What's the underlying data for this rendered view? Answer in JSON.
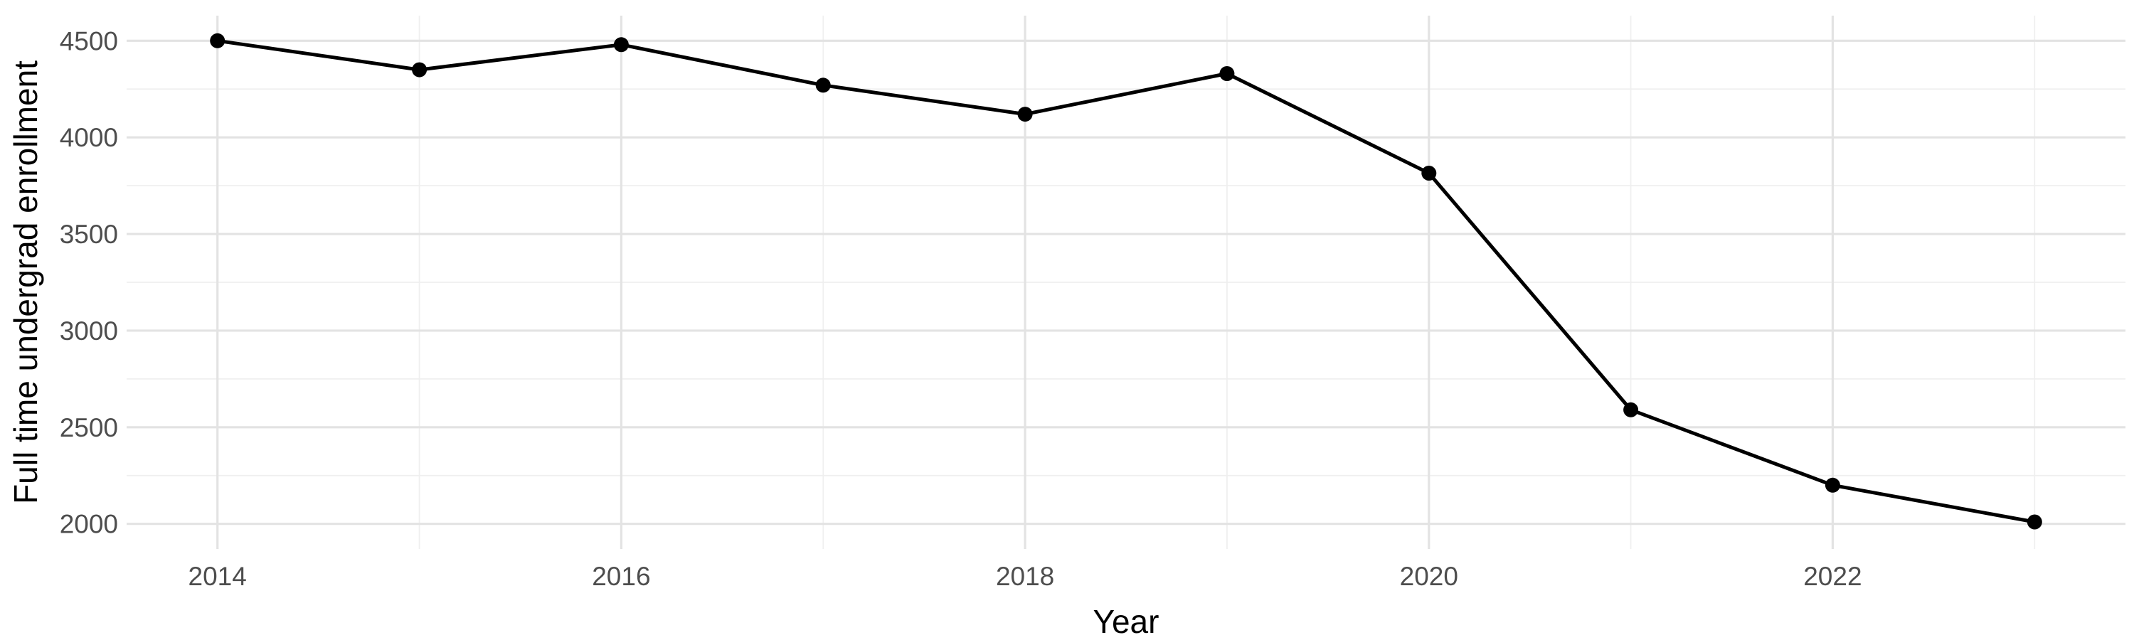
{
  "chart_data": {
    "type": "line",
    "title": "",
    "xlabel": "Year",
    "ylabel": "Full time undergrad enrollment",
    "x": [
      2014,
      2015,
      2016,
      2017,
      2018,
      2019,
      2020,
      2021,
      2022,
      2023
    ],
    "series": [
      {
        "name": "Full time undergrad enrollment",
        "values": [
          4500,
          4350,
          4480,
          4270,
          4120,
          4330,
          3815,
          2590,
          2200,
          2010
        ]
      }
    ],
    "xlim": [
      2013.55,
      2023.45
    ],
    "ylim": [
      1870,
      4630
    ],
    "x_major_ticks": [
      2014,
      2016,
      2018,
      2020,
      2022
    ],
    "x_minor_ticks": [
      2015,
      2017,
      2019,
      2021,
      2023
    ],
    "y_major_ticks": [
      2000,
      2500,
      3000,
      3500,
      4000,
      4500
    ],
    "y_minor_ticks": [
      2250,
      2750,
      3250,
      3750,
      4250
    ],
    "grid": "on",
    "legend": "none",
    "marker": "circle",
    "colors": {
      "background": "#FFFFFF",
      "line": "#000000",
      "point": "#000000",
      "grid_major": "#E3E3E3",
      "grid_minor": "#EFEFEF",
      "tick_label": "#4D4D4D",
      "axis_title": "#000000"
    }
  }
}
